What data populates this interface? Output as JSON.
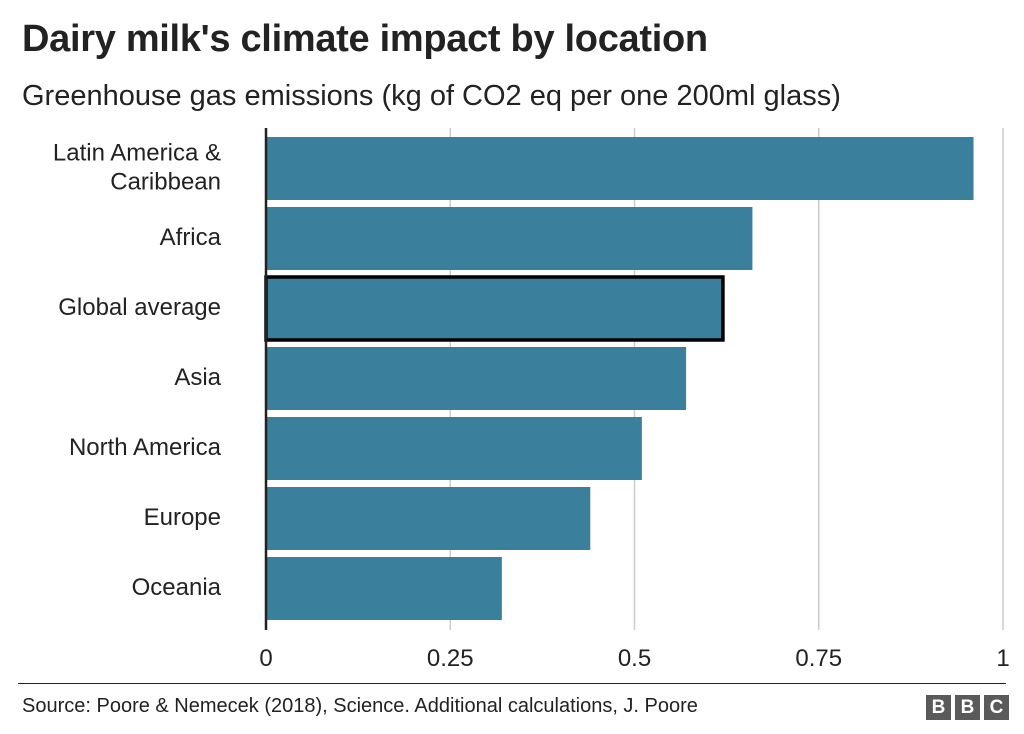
{
  "title": "Dairy milk's climate impact by location",
  "subtitle": "Greenhouse gas emissions (kg of CO2 eq per one 200ml glass)",
  "source": "Source: Poore & Nemecek (2018), Science. Additional calculations, J. Poore",
  "logo": [
    "B",
    "B",
    "C"
  ],
  "colors": {
    "bar": "#3a7f9c",
    "highlight_border": "#000000",
    "grid": "#cccccc",
    "axis": "#222222"
  },
  "chart_data": {
    "type": "bar",
    "orientation": "horizontal",
    "categories": [
      [
        "Latin America &",
        "Caribbean"
      ],
      [
        "Africa"
      ],
      [
        "Global average"
      ],
      [
        "Asia"
      ],
      [
        "North America"
      ],
      [
        "Europe"
      ],
      [
        "Oceania"
      ]
    ],
    "values": [
      0.96,
      0.66,
      0.62,
      0.57,
      0.51,
      0.44,
      0.32
    ],
    "highlighted": "Global average",
    "xlim": [
      0,
      1
    ],
    "xticks": [
      0,
      0.25,
      0.5,
      0.75,
      1
    ],
    "xtick_labels": [
      "0",
      "0.25",
      "0.5",
      "0.75",
      "1"
    ],
    "grid": true
  }
}
